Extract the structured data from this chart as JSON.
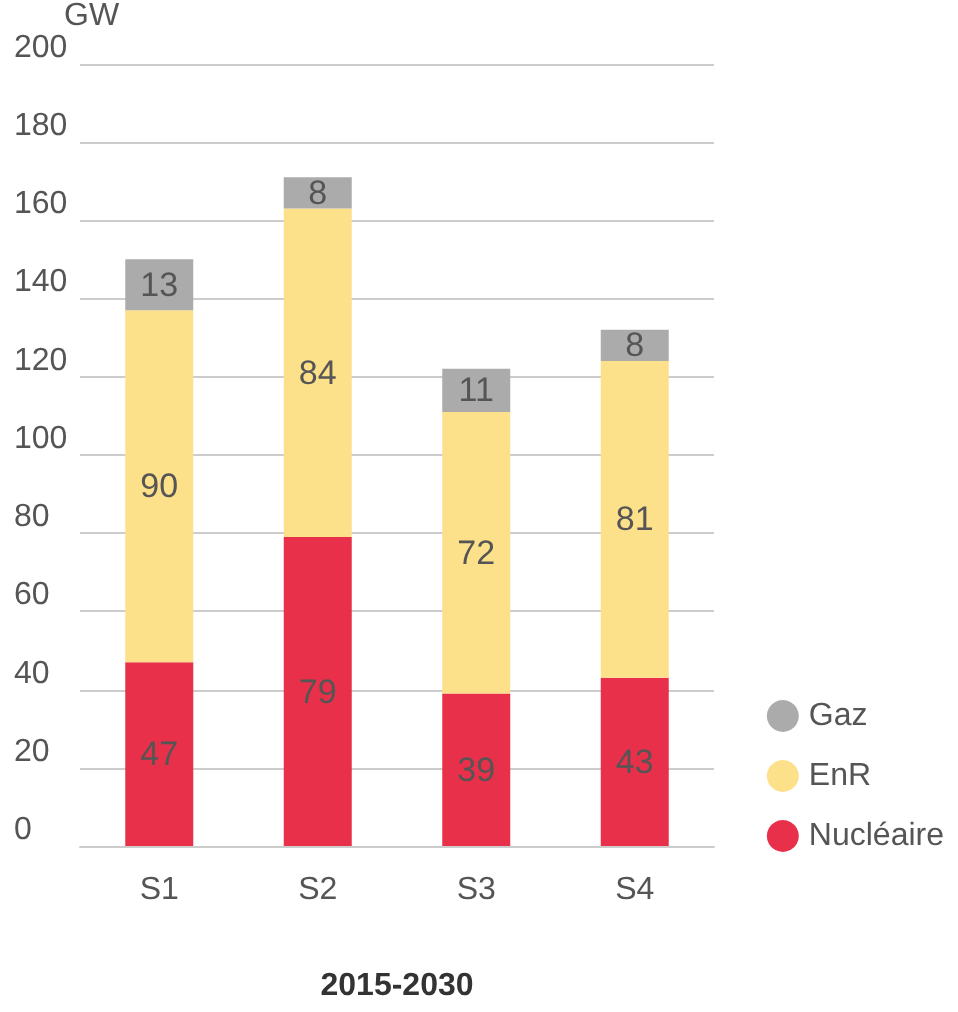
{
  "chart_data": {
    "type": "bar",
    "stacked": true,
    "ylabel": "GW",
    "xlabel": "2015-2030",
    "categories": [
      "S1",
      "S2",
      "S3",
      "S4"
    ],
    "series": [
      {
        "name": "Nucléaire",
        "color": "#e8304a",
        "values": [
          47,
          79,
          39,
          43
        ]
      },
      {
        "name": "EnR",
        "color": "#fde08a",
        "values": [
          90,
          84,
          72,
          81
        ]
      },
      {
        "name": "Gaz",
        "color": "#ababab",
        "values": [
          13,
          8,
          11,
          8
        ]
      }
    ],
    "ylim": [
      0,
      200
    ],
    "yticks": [
      0,
      20,
      40,
      60,
      80,
      100,
      120,
      140,
      160,
      180,
      200
    ],
    "grid": "y",
    "legend": "bottom right",
    "data_labels": true
  }
}
